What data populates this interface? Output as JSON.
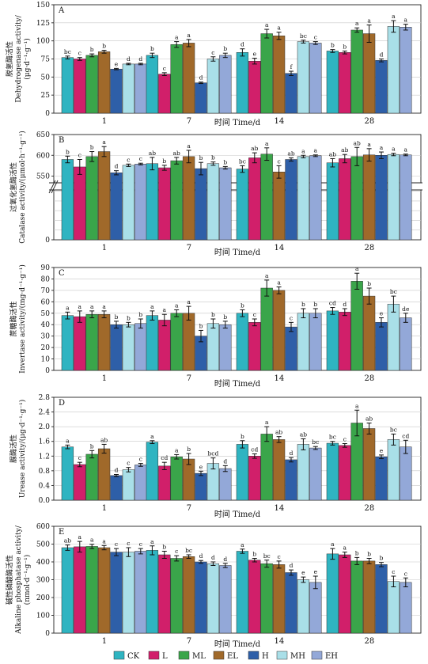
{
  "legend": [
    {
      "name": "CK",
      "color": "#2fb4c1"
    },
    {
      "name": "L",
      "color": "#d11f6a"
    },
    {
      "name": "ML",
      "color": "#3aa54a"
    },
    {
      "name": "EL",
      "color": "#a0692a"
    },
    {
      "name": "H",
      "color": "#2e5fa8"
    },
    {
      "name": "MH",
      "color": "#a9dfe8"
    },
    {
      "name": "EH",
      "color": "#93a8d8"
    }
  ],
  "chart_data": [
    {
      "type": "bar",
      "panel": "A",
      "xlabel": "时间 Time/d",
      "ylabel": [
        "脱氢酶活性",
        "Dehydrogenase activity/",
        "(μg·d⁻¹·g⁻¹)"
      ],
      "categories": [
        "1",
        "7",
        "14",
        "28"
      ],
      "ylim": [
        0,
        150
      ],
      "yticks": [
        0,
        25,
        50,
        75,
        100,
        125,
        150
      ],
      "series": [
        {
          "name": "CK",
          "values": [
            77,
            80,
            84,
            86
          ],
          "err": [
            2,
            3,
            5,
            2
          ],
          "letters": [
            "bc",
            "b",
            "d",
            "b"
          ]
        },
        {
          "name": "L",
          "values": [
            75,
            54,
            72,
            84
          ],
          "err": [
            2,
            2,
            4,
            2
          ],
          "letters": [
            "c",
            "c",
            "e",
            "b"
          ]
        },
        {
          "name": "ML",
          "values": [
            80,
            95,
            110,
            115
          ],
          "err": [
            2,
            4,
            6,
            3
          ],
          "letters": [
            "b",
            "a",
            "a",
            "a"
          ]
        },
        {
          "name": "EL",
          "values": [
            85,
            97,
            107,
            110
          ],
          "err": [
            2,
            5,
            5,
            12
          ],
          "letters": [
            "b",
            "a",
            "a",
            "a"
          ]
        },
        {
          "name": "H",
          "values": [
            61,
            42,
            55,
            73
          ],
          "err": [
            1,
            1,
            3,
            2
          ],
          "letters": [
            "e",
            "d",
            "f",
            "d"
          ]
        },
        {
          "name": "MH",
          "values": [
            68,
            75,
            99,
            120
          ],
          "err": [
            1,
            3,
            2,
            8
          ],
          "letters": [
            "d",
            "c",
            "bc",
            "a"
          ]
        },
        {
          "name": "EH",
          "values": [
            68,
            80,
            97,
            119
          ],
          "err": [
            1,
            3,
            2,
            4
          ],
          "letters": [
            "d",
            "b",
            "c",
            "a"
          ]
        }
      ]
    },
    {
      "type": "bar",
      "panel": "B",
      "xlabel": "时间 Time/d",
      "ylabel": [
        "过氧化氢酶活性",
        "Catalase activity/(μmol·h⁻¹·g⁻¹)"
      ],
      "categories": [
        "1",
        "7",
        "14",
        "28"
      ],
      "ylim": [
        0,
        650
      ],
      "break": [
        530,
        650
      ],
      "yticks": [
        0,
        550,
        600,
        650
      ],
      "series": [
        {
          "name": "CK",
          "values": [
            590,
            580,
            567,
            582
          ],
          "err": [
            8,
            15,
            8,
            10
          ],
          "letters": [
            "b",
            "ab",
            "bc",
            "ab"
          ]
        },
        {
          "name": "L",
          "values": [
            572,
            570,
            594,
            592
          ],
          "err": [
            18,
            6,
            12,
            10
          ],
          "letters": [
            "c",
            "b",
            "ab",
            "ab"
          ]
        },
        {
          "name": "ML",
          "values": [
            597,
            587,
            603,
            597
          ],
          "err": [
            12,
            8,
            15,
            22
          ],
          "letters": [
            "b",
            "ab",
            "a",
            "ab"
          ]
        },
        {
          "name": "EL",
          "values": [
            609,
            597,
            560,
            601
          ],
          "err": [
            12,
            15,
            15,
            15
          ],
          "letters": [
            "a",
            "a",
            "c",
            "a"
          ]
        },
        {
          "name": "H",
          "values": [
            558,
            568,
            590,
            600
          ],
          "err": [
            5,
            15,
            4,
            8
          ],
          "letters": [
            "d",
            "b",
            "ab",
            "a"
          ]
        },
        {
          "name": "MH",
          "values": [
            576,
            580,
            597,
            602
          ],
          "err": [
            3,
            4,
            3,
            3
          ],
          "letters": [
            "c",
            "b",
            "a",
            "a"
          ]
        },
        {
          "name": "EH",
          "values": [
            579,
            570,
            599,
            601
          ],
          "err": [
            2,
            3,
            2,
            2
          ],
          "letters": [
            "c",
            "b",
            "a",
            "a"
          ]
        }
      ]
    },
    {
      "type": "bar",
      "panel": "C",
      "xlabel": "时间 Time/d",
      "ylabel": [
        "蔗糖酶活性",
        "Invertase activity/(mg·d⁻¹·g⁻¹)"
      ],
      "categories": [
        "1",
        "7",
        "14",
        "28"
      ],
      "ylim": [
        0,
        90
      ],
      "yticks": [
        0,
        10,
        20,
        30,
        40,
        50,
        60,
        70,
        80,
        90
      ],
      "series": [
        {
          "name": "CK",
          "values": [
            48,
            48,
            50,
            52
          ],
          "err": [
            3,
            4,
            3,
            3
          ],
          "letters": [
            "a",
            "a",
            "b",
            "cd"
          ]
        },
        {
          "name": "L",
          "values": [
            47,
            44,
            42,
            51
          ],
          "err": [
            5,
            5,
            3,
            3
          ],
          "letters": [
            "a",
            "a",
            "c",
            "d"
          ]
        },
        {
          "name": "ML",
          "values": [
            49,
            50,
            72,
            78
          ],
          "err": [
            3,
            3,
            7,
            7
          ],
          "letters": [
            "a",
            "a",
            "a",
            "a"
          ]
        },
        {
          "name": "EL",
          "values": [
            49,
            50,
            70,
            65
          ],
          "err": [
            3,
            6,
            3,
            7
          ],
          "letters": [
            "a",
            "a",
            "a",
            "b"
          ]
        },
        {
          "name": "H",
          "values": [
            40,
            30,
            38,
            42
          ],
          "err": [
            3,
            5,
            4,
            4
          ],
          "letters": [
            "b",
            "b",
            "c",
            "e"
          ]
        },
        {
          "name": "MH",
          "values": [
            40,
            41,
            50,
            58
          ],
          "err": [
            2,
            4,
            4,
            7
          ],
          "letters": [
            "b",
            "b",
            "b",
            "bc"
          ]
        },
        {
          "name": "EH",
          "values": [
            41,
            40,
            50,
            46
          ],
          "err": [
            4,
            3,
            4,
            4
          ],
          "letters": [
            "b",
            "b",
            "b",
            "de"
          ]
        }
      ]
    },
    {
      "type": "bar",
      "panel": "D",
      "xlabel": "时间 Time/d",
      "ylabel": [
        "脲酶活性",
        "Urease activity/(μg·d⁻¹·g⁻¹)"
      ],
      "categories": [
        "1",
        "7",
        "14",
        "28"
      ],
      "ylim": [
        0,
        2.8
      ],
      "yticks": [
        0,
        0.4,
        0.8,
        1.2,
        1.6,
        2.0,
        2.4,
        2.8
      ],
      "series": [
        {
          "name": "CK",
          "values": [
            1.45,
            1.58,
            1.52,
            1.55
          ],
          "err": [
            0.05,
            0.04,
            0.1,
            0.05
          ],
          "letters": [
            "a",
            "a",
            "b",
            "bc"
          ]
        },
        {
          "name": "L",
          "values": [
            0.97,
            0.93,
            1.2,
            1.49
          ],
          "err": [
            0.06,
            0.1,
            0.06,
            0.05
          ],
          "letters": [
            "c",
            "cd",
            "cd",
            "c"
          ]
        },
        {
          "name": "ML",
          "values": [
            1.25,
            1.18,
            1.8,
            2.1
          ],
          "err": [
            0.1,
            0.06,
            0.2,
            0.35
          ],
          "letters": [
            "b",
            "a",
            "a",
            "a"
          ]
        },
        {
          "name": "EL",
          "values": [
            1.4,
            1.12,
            1.65,
            1.95
          ],
          "err": [
            0.12,
            0.15,
            0.08,
            0.15
          ],
          "letters": [
            "ab",
            "b",
            "ab",
            "ab"
          ]
        },
        {
          "name": "H",
          "values": [
            0.67,
            0.73,
            1.1,
            1.18
          ],
          "err": [
            0.03,
            0.06,
            0.06,
            0.05
          ],
          "letters": [
            "d",
            "e",
            "d",
            "e"
          ]
        },
        {
          "name": "MH",
          "values": [
            0.83,
            1.0,
            1.52,
            1.65
          ],
          "err": [
            0.06,
            0.15,
            0.15,
            0.15
          ],
          "letters": [
            "c",
            "bcd",
            "ab",
            "bc"
          ]
        },
        {
          "name": "EH",
          "values": [
            0.96,
            0.86,
            1.42,
            1.45
          ],
          "err": [
            0.04,
            0.08,
            0.04,
            0.18
          ],
          "letters": [
            "c",
            "d",
            "bc",
            "cd"
          ]
        }
      ]
    },
    {
      "type": "bar",
      "panel": "E",
      "xlabel": "时间 Time/d",
      "ylabel": [
        "碱性磷酸酶活性",
        "Alkaline phosphatase activity/",
        "(nmol·d⁻¹·g⁻¹)"
      ],
      "categories": [
        "1",
        "7",
        "14",
        "28"
      ],
      "ylim": [
        0,
        600
      ],
      "yticks": [
        0,
        100,
        200,
        300,
        400,
        500,
        600
      ],
      "series": [
        {
          "name": "CK",
          "values": [
            480,
            465,
            460,
            445
          ],
          "err": [
            15,
            25,
            12,
            30
          ],
          "letters": [
            "ab",
            "a",
            "a",
            "a"
          ]
        },
        {
          "name": "L",
          "values": [
            485,
            440,
            410,
            440
          ],
          "err": [
            30,
            20,
            10,
            15
          ],
          "letters": [
            "a",
            "b",
            "b",
            "a"
          ]
        },
        {
          "name": "ML",
          "values": [
            487,
            420,
            390,
            405
          ],
          "err": [
            12,
            15,
            20,
            20
          ],
          "letters": [
            "a",
            "c",
            "bc",
            "b"
          ]
        },
        {
          "name": "EL",
          "values": [
            480,
            430,
            385,
            405
          ],
          "err": [
            12,
            10,
            20,
            15
          ],
          "letters": [
            "a",
            "bc",
            "c",
            "b"
          ]
        },
        {
          "name": "H",
          "values": [
            455,
            400,
            340,
            385
          ],
          "err": [
            20,
            8,
            15,
            12
          ],
          "letters": [
            "c",
            "d",
            "d",
            "b"
          ]
        },
        {
          "name": "MH",
          "values": [
            455,
            390,
            300,
            290
          ],
          "err": [
            25,
            10,
            15,
            30
          ],
          "letters": [
            "c",
            "d",
            "e",
            "c"
          ]
        },
        {
          "name": "EH",
          "values": [
            460,
            380,
            285,
            285
          ],
          "err": [
            15,
            12,
            35,
            25
          ],
          "letters": [
            "c",
            "d",
            "e",
            "c"
          ]
        }
      ]
    }
  ]
}
